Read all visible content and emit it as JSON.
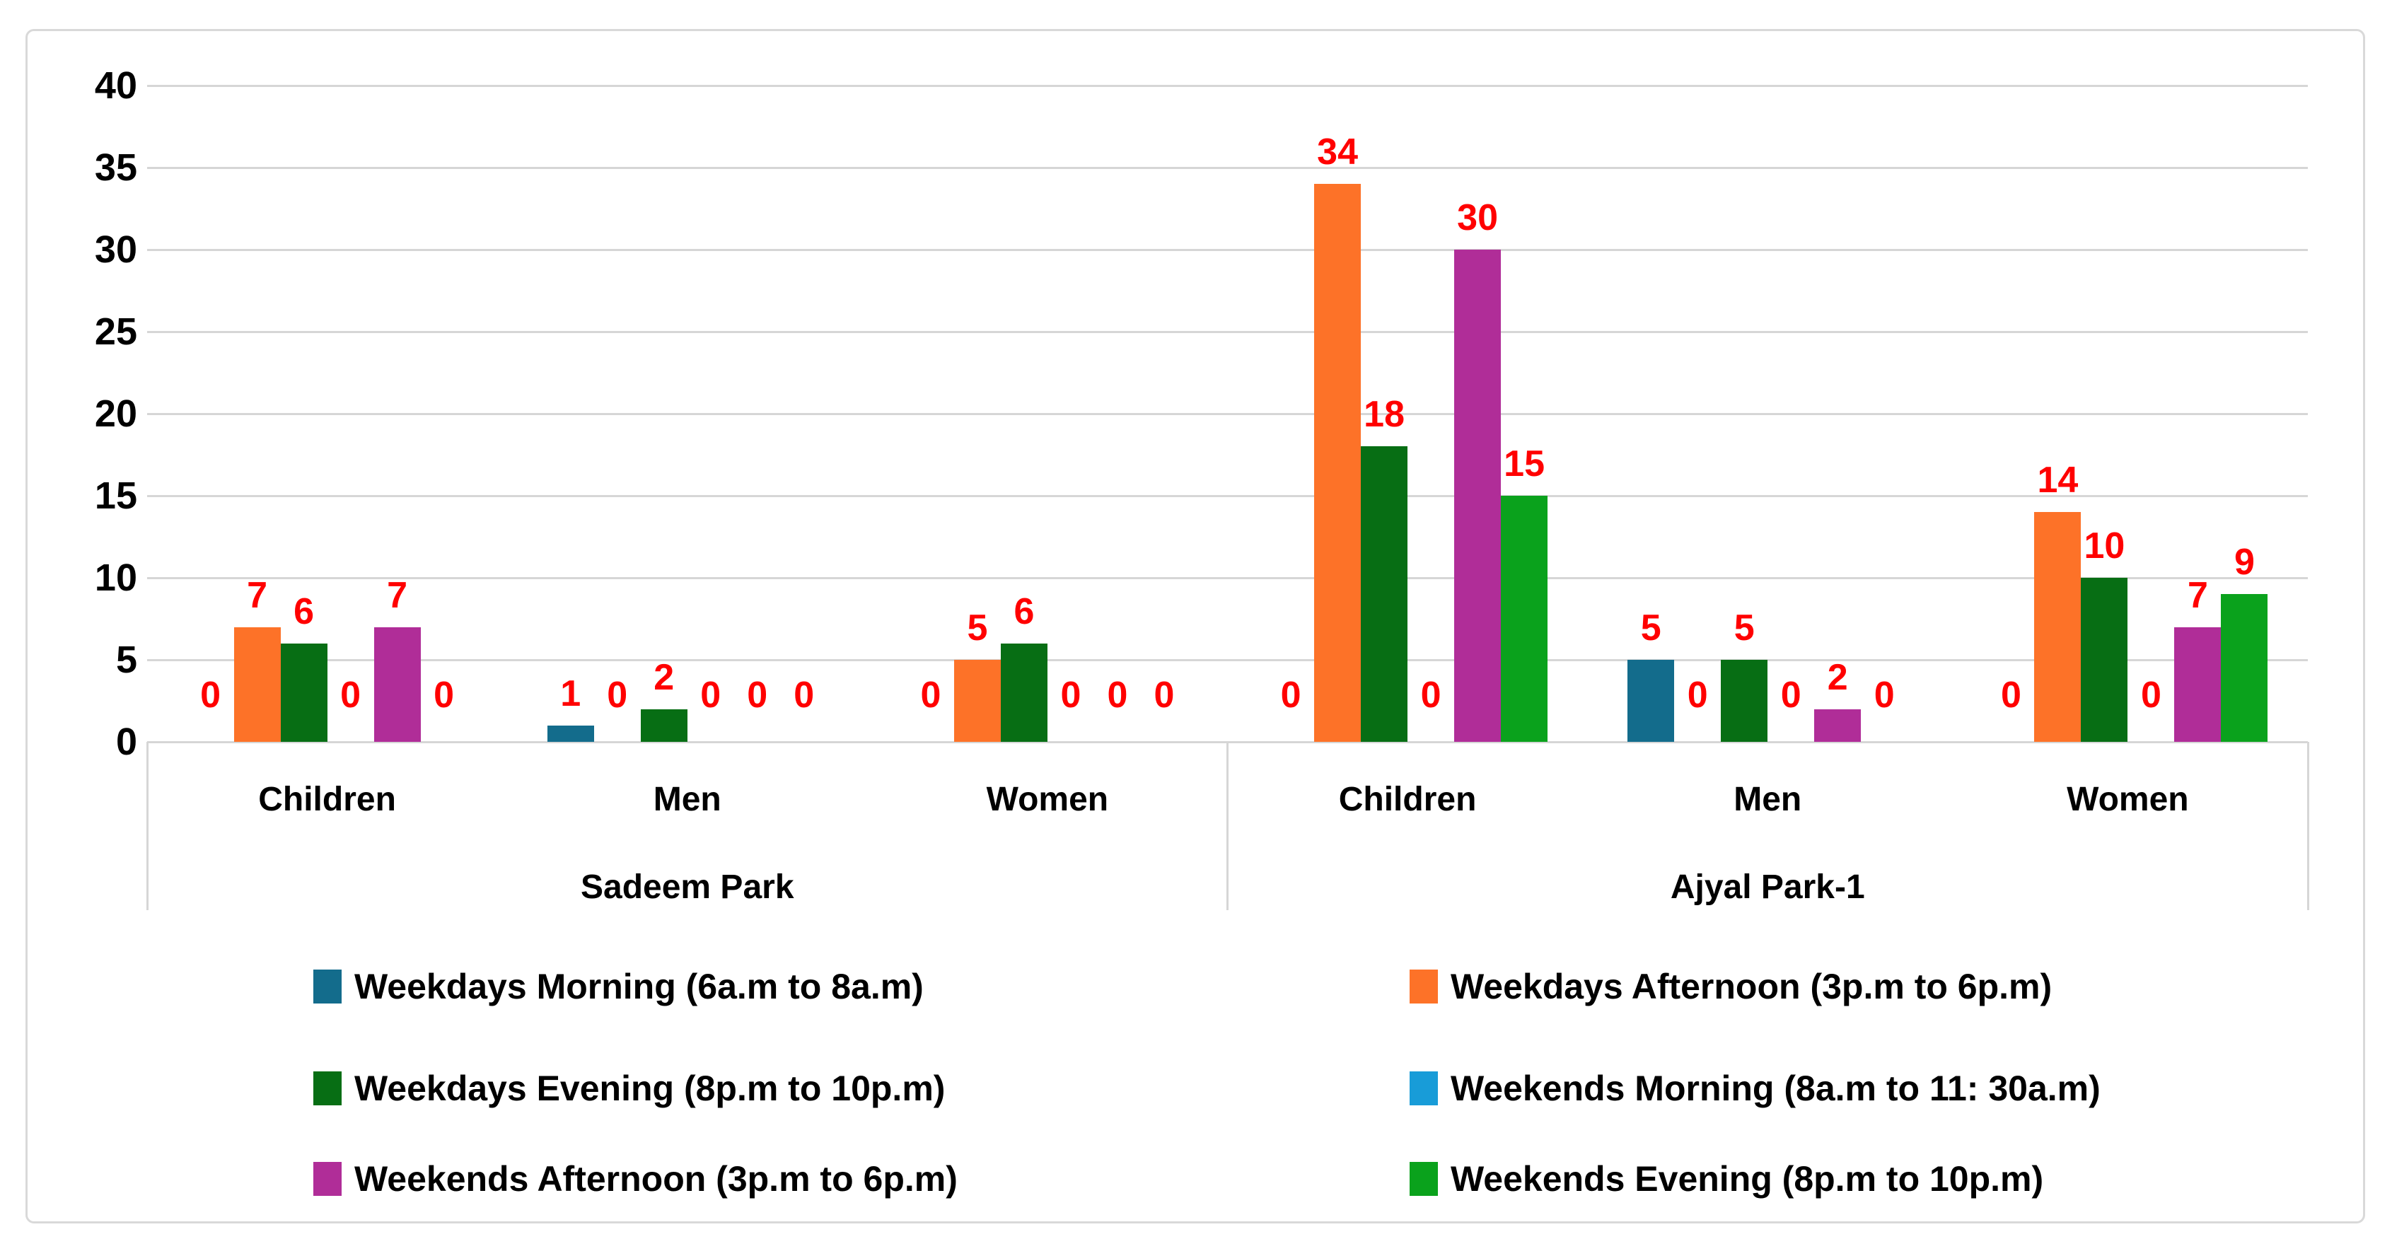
{
  "chart_data": {
    "type": "bar",
    "title": "",
    "xlabel": "",
    "ylabel": "",
    "ylim": [
      0,
      40
    ],
    "ytick_step": 5,
    "yticks": [
      0,
      5,
      10,
      15,
      20,
      25,
      30,
      35,
      40
    ],
    "grid": true,
    "legend_position": "bottom",
    "legend_columns": 2,
    "value_label_color": "#FF0000",
    "axis_text_color": "#000000",
    "gridline_color": "#D6D6D6",
    "border_color": "#D9D9D9",
    "group_labels": [
      "Sadeem Park",
      "Ajyal Park-1"
    ],
    "categories": [
      "Children",
      "Men",
      "Women",
      "Children",
      "Men",
      "Women"
    ],
    "category_group_index": [
      0,
      0,
      0,
      1,
      1,
      1
    ],
    "series": [
      {
        "name": "Weekdays Morning (6a.m to 8a.m)",
        "color": "#136C8C",
        "values": [
          0,
          1,
          0,
          0,
          5,
          0
        ]
      },
      {
        "name": "Weekdays Afternoon (3p.m to 6p.m)",
        "color": "#FD7228",
        "values": [
          7,
          0,
          5,
          34,
          0,
          14
        ]
      },
      {
        "name": "Weekdays Evening (8p.m to 10p.m)",
        "color": "#076E14",
        "values": [
          6,
          2,
          6,
          18,
          5,
          10
        ]
      },
      {
        "name": "Weekends Morning (8a.m to 11: 30a.m)",
        "color": "#189CD8",
        "values": [
          0,
          0,
          0,
          0,
          0,
          0
        ]
      },
      {
        "name": "Weekends Afternoon (3p.m to 6p.m)",
        "color": "#B02D98",
        "values": [
          7,
          0,
          0,
          30,
          2,
          7
        ]
      },
      {
        "name": "Weekends Evening (8p.m to 10p.m)",
        "color": "#0AA21C",
        "values": [
          0,
          0,
          0,
          15,
          0,
          9
        ]
      }
    ]
  }
}
